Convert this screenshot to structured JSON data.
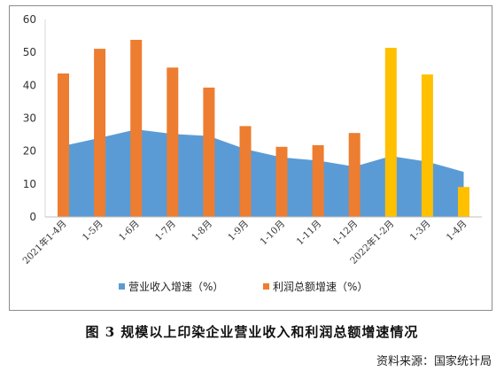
{
  "caption": "图 3   规模以上印染企业营业收入和利润总额增速情况",
  "source": "资料来源：国家统计局",
  "chart_data": {
    "type": "bar",
    "categories": [
      "2021年1-4月",
      "1-5月",
      "1-6月",
      "1-7月",
      "1-8月",
      "1-9月",
      "1-10月",
      "1-11月",
      "1-12月",
      "2022年1-2月",
      "1-3月",
      "1-4月"
    ],
    "ylim": [
      0,
      60
    ],
    "yticks": [
      0,
      10,
      20,
      30,
      40,
      50,
      60
    ],
    "grid": false,
    "legend_position": "bottom",
    "series": [
      {
        "name": "营业收入增速（%）",
        "render": "area",
        "color": "#5b9bd5",
        "values": [
          21.6,
          24.0,
          26.6,
          25.2,
          24.6,
          20.6,
          18.1,
          17.1,
          15.3,
          18.5,
          16.8,
          13.7
        ]
      },
      {
        "name": "利润总额增速（%）",
        "render": "bar",
        "color": "#ed7d31",
        "highlight_color": "#ffc000",
        "highlight_indices": [
          9,
          10,
          11
        ],
        "values": [
          43.6,
          51.1,
          53.8,
          45.4,
          39.3,
          27.6,
          21.3,
          21.8,
          25.5,
          51.4,
          43.3,
          9.1
        ]
      }
    ]
  }
}
